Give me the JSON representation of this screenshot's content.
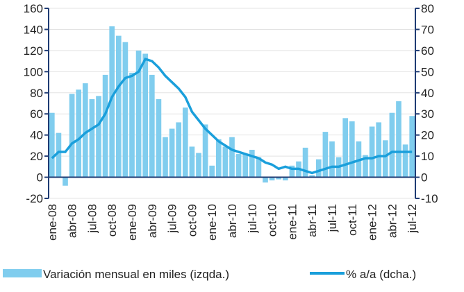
{
  "chart_data": {
    "type": "bar_line",
    "categories": [
      "ene-08",
      null,
      null,
      "abr-08",
      null,
      null,
      "jul-08",
      null,
      null,
      "oct-08",
      null,
      null,
      "ene-09",
      null,
      null,
      "abr-09",
      null,
      null,
      "jul-09",
      null,
      null,
      "oct-09",
      null,
      null,
      "ene-10",
      null,
      null,
      "abr-10",
      null,
      null,
      "jul-10",
      null,
      null,
      "oct-10",
      null,
      null,
      "ene-11",
      null,
      null,
      "abr-11",
      null,
      null,
      "jul-11",
      null,
      null,
      "oct-11",
      null,
      null,
      "ene-12",
      null,
      null,
      "abr-12",
      null,
      null,
      "jul-12"
    ],
    "series": [
      {
        "name": "Variación mensual en miles (izqda.)",
        "color": "#80cdee",
        "type": "bar",
        "axis": "y",
        "values": [
          61,
          42,
          -8,
          79,
          83,
          89,
          74,
          77,
          97,
          143,
          134,
          128,
          99,
          120,
          117,
          97,
          74,
          38,
          46,
          52,
          66,
          29,
          23,
          50,
          11,
          36,
          29,
          38,
          22,
          22,
          26,
          19,
          -5,
          -3,
          -2,
          -3,
          11,
          15,
          28,
          2,
          17,
          43,
          34,
          19,
          56,
          53,
          34,
          21,
          48,
          52,
          35,
          61,
          72,
          31,
          58
        ]
      },
      {
        "name": "% a/a (dcha.)",
        "color": "#1a9fdb",
        "type": "line",
        "axis": "y2",
        "values": [
          9,
          12,
          12,
          16,
          18,
          21,
          23,
          25,
          30,
          38,
          43,
          47,
          48,
          50,
          56,
          55,
          52,
          48,
          45,
          42,
          38,
          31,
          27,
          23,
          20,
          17,
          15,
          13,
          12,
          11,
          10,
          9,
          7,
          6,
          4,
          5,
          4,
          4,
          3,
          2,
          3,
          4,
          5,
          5,
          6,
          7,
          8,
          9,
          9,
          10,
          10,
          12,
          12,
          12,
          12
        ]
      }
    ],
    "ylim": [
      -20,
      160
    ],
    "yticks": [
      -20,
      0,
      20,
      40,
      60,
      80,
      100,
      120,
      140,
      160
    ],
    "y2lim": [
      -10,
      80
    ],
    "y2ticks": [
      -10,
      0,
      10,
      20,
      30,
      40,
      50,
      60,
      70,
      80
    ],
    "grid": true
  }
}
